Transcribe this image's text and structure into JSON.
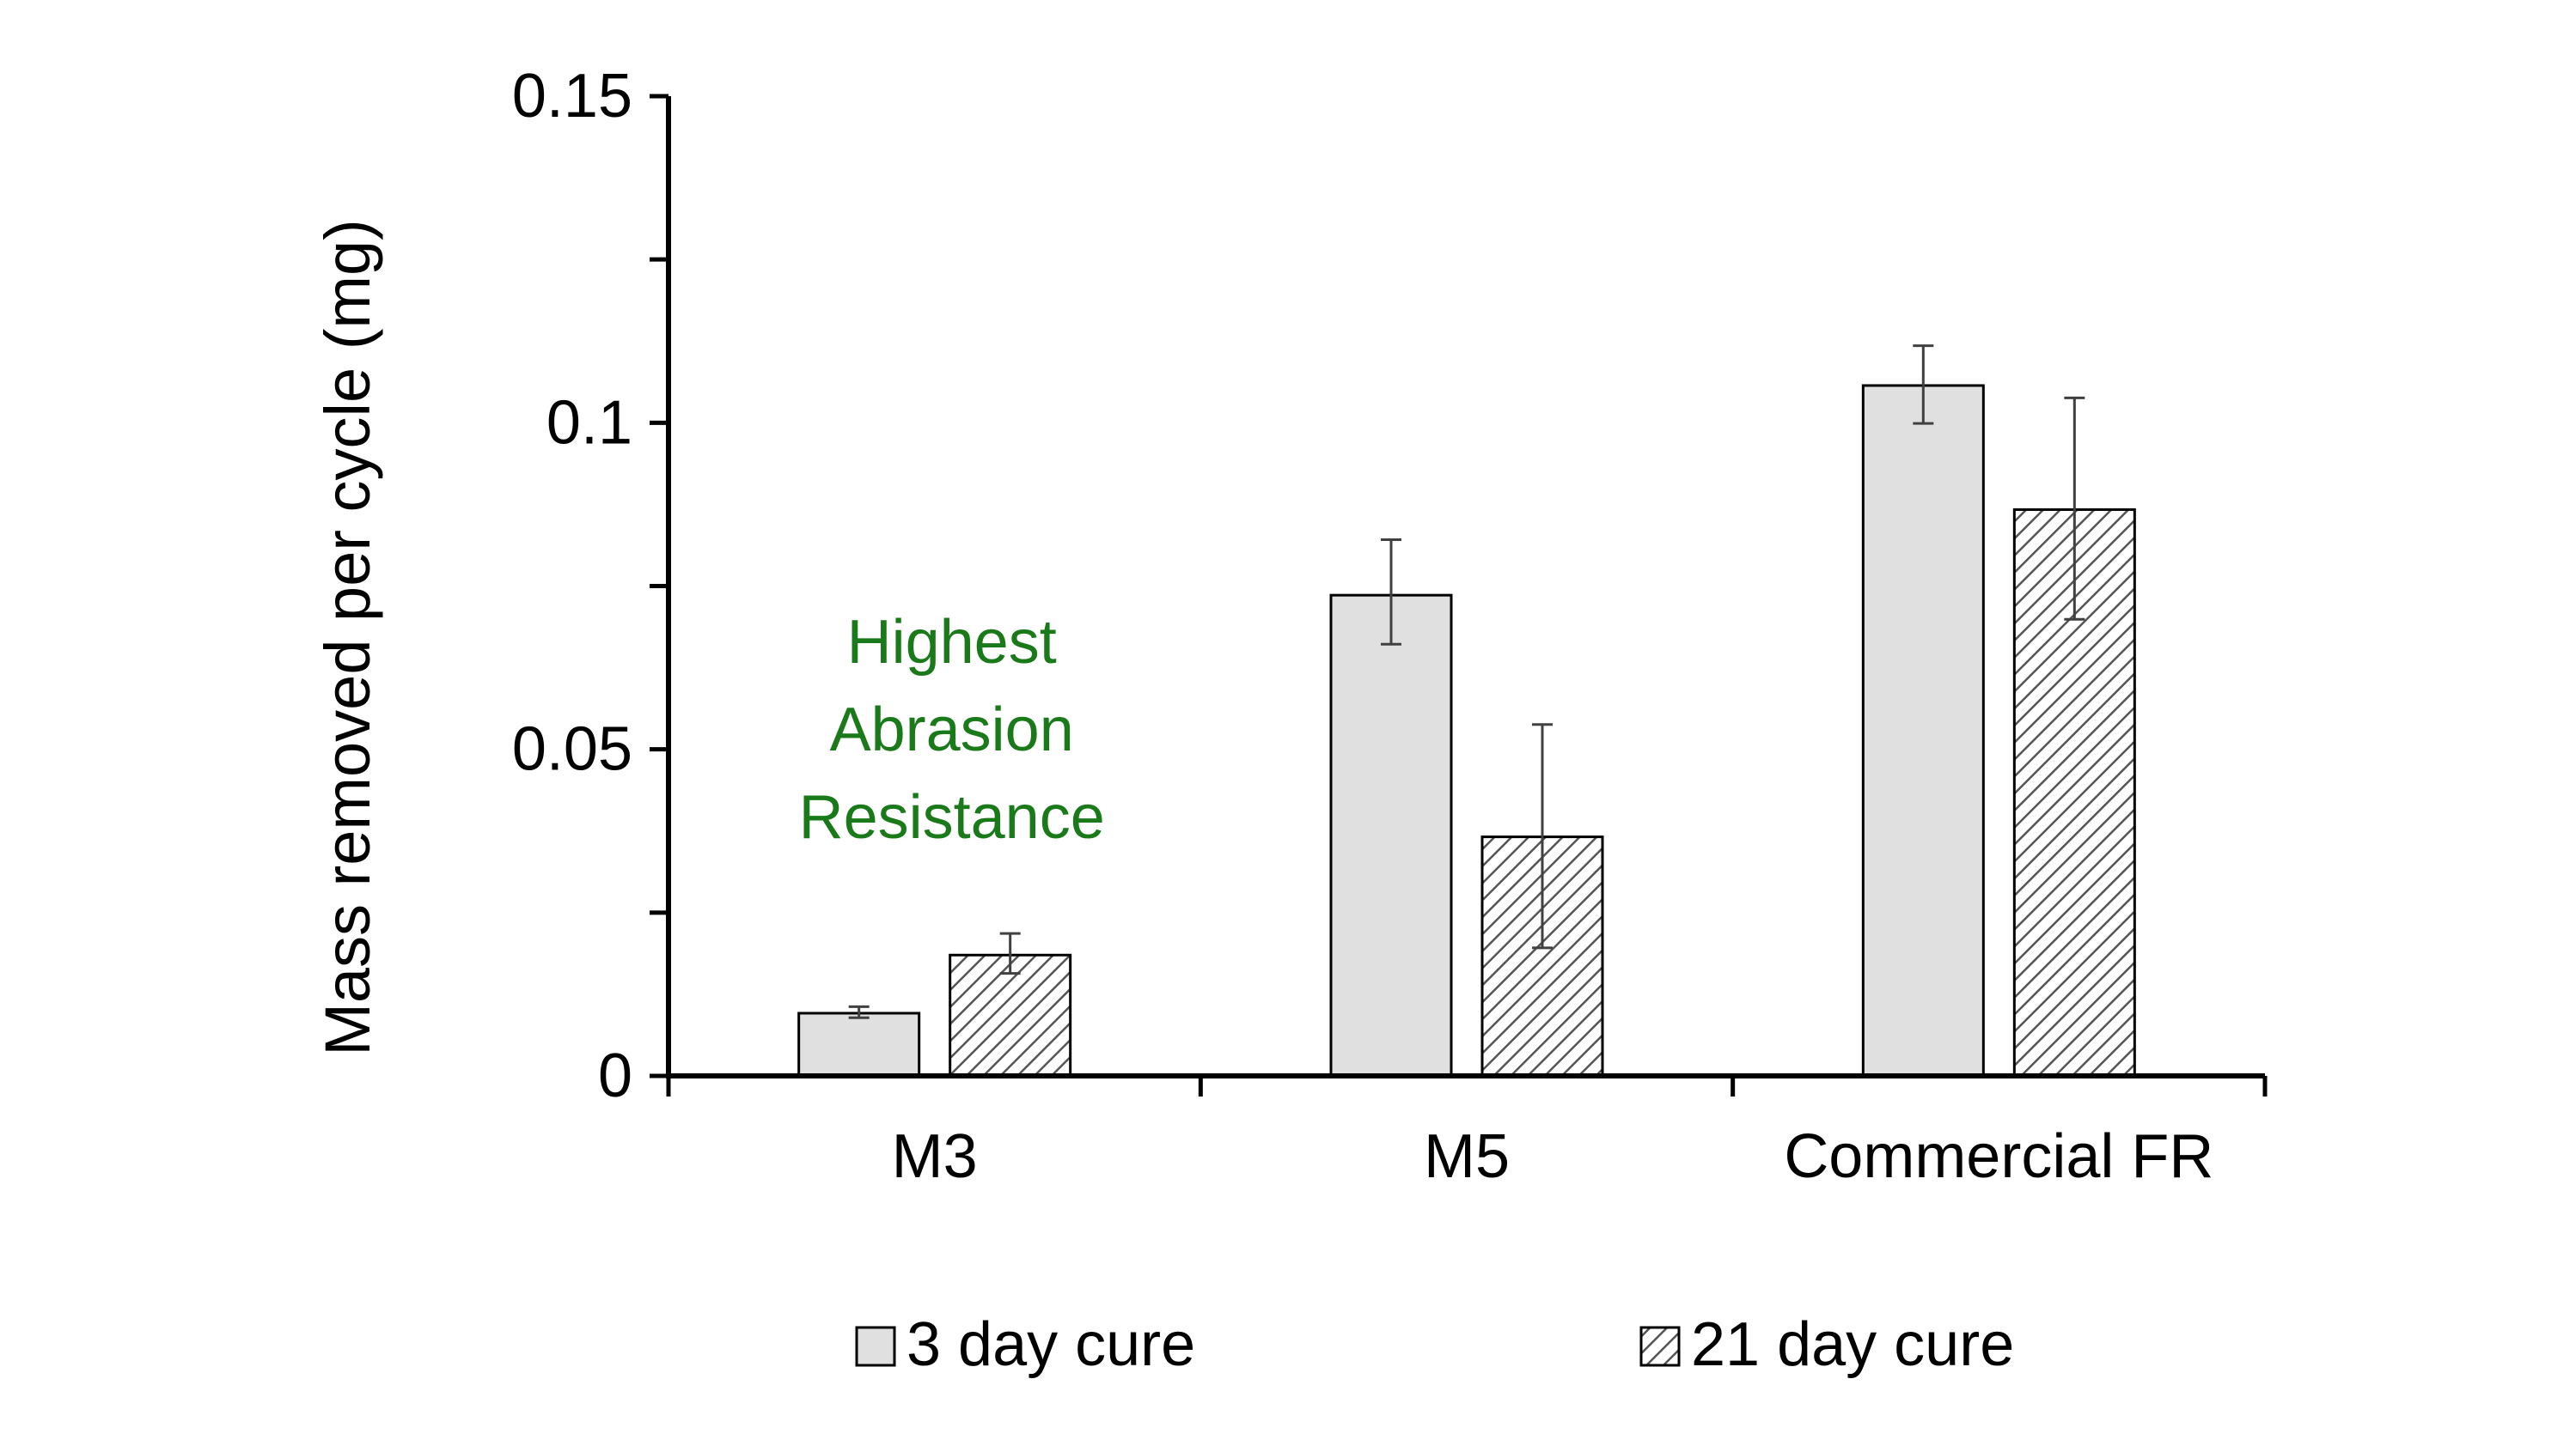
{
  "chart_data": {
    "type": "bar",
    "title": "",
    "xlabel": "",
    "ylabel": "Mass removed per cycle (mg)",
    "ylim": [
      0,
      0.15
    ],
    "yticks": [
      0,
      0.05,
      0.1,
      0.15
    ],
    "ytick_labels": [
      "0",
      "0.05",
      "0.1",
      "0.15"
    ],
    "minor_ytick_step": 0.025,
    "grid": false,
    "legend_position": "bottom",
    "categories": [
      "M3",
      "M5",
      "Commercial FR"
    ],
    "series": [
      {
        "name": "3 day cure",
        "values": [
          0.0096,
          0.0736,
          0.1057
        ],
        "error_low": [
          0.0089,
          0.0661,
          0.0999
        ],
        "error_high": [
          0.0106,
          0.0821,
          0.1118
        ],
        "fill": "solid",
        "color": "#e0e0e0"
      },
      {
        "name": "21 day cure",
        "values": [
          0.0185,
          0.0366,
          0.0867
        ],
        "error_low": [
          0.0157,
          0.0196,
          0.0699
        ],
        "error_high": [
          0.0218,
          0.0538,
          0.1038
        ],
        "fill": "hatched",
        "color": "#ffffff",
        "hatch_color": "#555555"
      }
    ],
    "annotations": [
      {
        "lines": [
          "Highest",
          "Abrasion",
          "Resistance"
        ],
        "category": "M3",
        "color": "#1a7a1a"
      }
    ]
  }
}
